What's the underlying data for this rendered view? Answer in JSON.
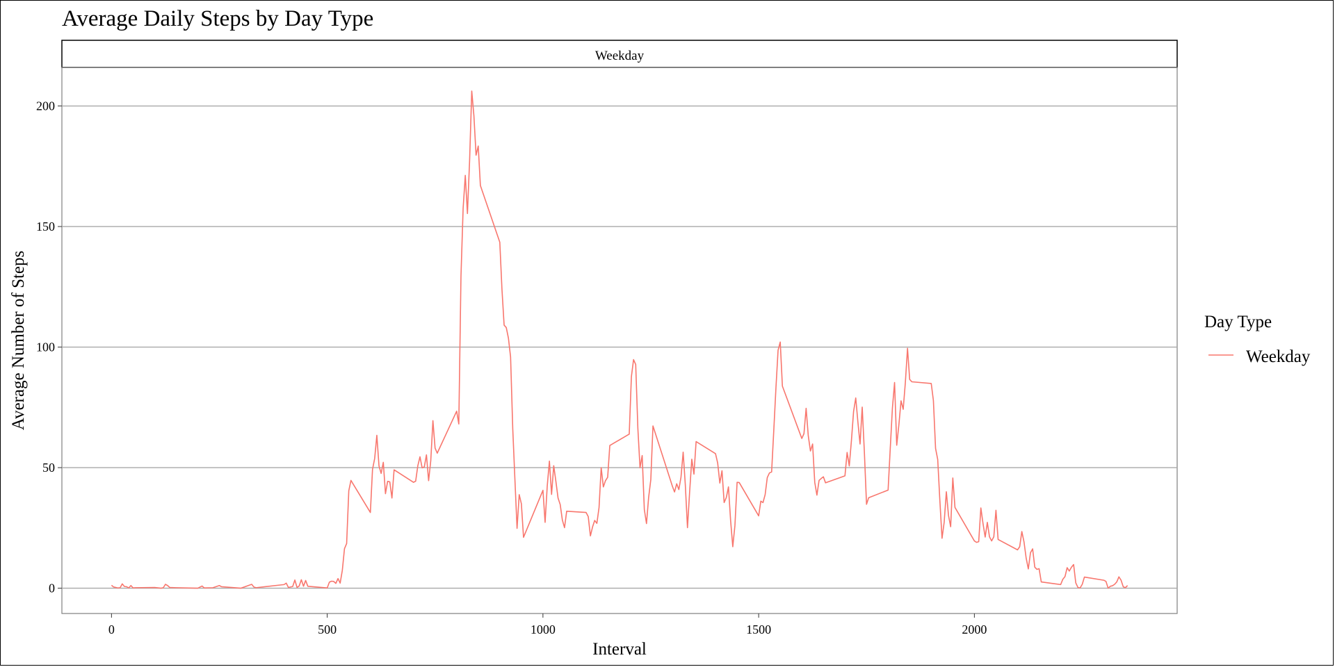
{
  "chart_data": {
    "type": "line",
    "title": "Average Daily Steps by Day Type",
    "facet_label": "Weekday",
    "xlabel": "Interval",
    "ylabel": "Average Number of Steps",
    "xlim": [
      -115,
      2470
    ],
    "ylim": [
      -10.5,
      216
    ],
    "x_ticks": [
      0,
      500,
      1000,
      1500,
      2000
    ],
    "y_ticks": [
      0,
      50,
      100,
      150,
      200
    ],
    "grid": "horizontal",
    "legend": {
      "title": "Day Type",
      "position": "right",
      "entries": [
        "Weekday"
      ]
    },
    "colors": {
      "series": "#F8766D",
      "grid": "#a8a8a8",
      "panel_border": "#7f7f7f"
    },
    "series": [
      {
        "name": "Weekday",
        "points": [
          [
            0,
            1.2
          ],
          [
            5,
            0.5
          ],
          [
            15,
            0.1
          ],
          [
            20,
            0.2
          ],
          [
            25,
            1.8
          ],
          [
            30,
            0.7
          ],
          [
            35,
            0.6
          ],
          [
            40,
            0.1
          ],
          [
            45,
            1.1
          ],
          [
            50,
            0.1
          ],
          [
            55,
            0.2
          ],
          [
            100,
            0.3
          ],
          [
            115,
            0.0
          ],
          [
            120,
            0.2
          ],
          [
            125,
            1.6
          ],
          [
            130,
            1.1
          ],
          [
            135,
            0.3
          ],
          [
            150,
            0.2
          ],
          [
            200,
            0.0
          ],
          [
            210,
            0.9
          ],
          [
            215,
            0.1
          ],
          [
            235,
            0.2
          ],
          [
            250,
            1.1
          ],
          [
            255,
            0.6
          ],
          [
            300,
            0.0
          ],
          [
            325,
            1.6
          ],
          [
            330,
            0.5
          ],
          [
            335,
            0.2
          ],
          [
            400,
            1.5
          ],
          [
            405,
            2.1
          ],
          [
            410,
            0.3
          ],
          [
            420,
            0.7
          ],
          [
            425,
            3.4
          ],
          [
            430,
            0.3
          ],
          [
            435,
            0.9
          ],
          [
            440,
            3.5
          ],
          [
            445,
            0.8
          ],
          [
            450,
            3.2
          ],
          [
            455,
            0.8
          ],
          [
            500,
            0.1
          ],
          [
            505,
            2.5
          ],
          [
            510,
            2.9
          ],
          [
            515,
            2.8
          ],
          [
            520,
            2.0
          ],
          [
            525,
            4.0
          ],
          [
            530,
            2.1
          ],
          [
            535,
            7.4
          ],
          [
            540,
            16.4
          ],
          [
            545,
            18.5
          ],
          [
            550,
            40.4
          ],
          [
            555,
            44.7
          ],
          [
            600,
            31.4
          ],
          [
            605,
            49.3
          ],
          [
            610,
            53.8
          ],
          [
            615,
            63.4
          ],
          [
            620,
            50.7
          ],
          [
            625,
            47.6
          ],
          [
            630,
            52.2
          ],
          [
            635,
            39.2
          ],
          [
            640,
            44.3
          ],
          [
            645,
            44.1
          ],
          [
            650,
            37.4
          ],
          [
            655,
            49.1
          ],
          [
            700,
            43.9
          ],
          [
            705,
            44.4
          ],
          [
            710,
            50.8
          ],
          [
            715,
            54.5
          ],
          [
            720,
            49.9
          ],
          [
            725,
            50.3
          ],
          [
            730,
            55.3
          ],
          [
            735,
            44.6
          ],
          [
            740,
            52.9
          ],
          [
            745,
            69.5
          ],
          [
            750,
            58.1
          ],
          [
            755,
            56.0
          ],
          [
            800,
            73.4
          ],
          [
            805,
            68.1
          ],
          [
            810,
            129.4
          ],
          [
            815,
            157.5
          ],
          [
            820,
            171.2
          ],
          [
            825,
            155.4
          ],
          [
            830,
            177.3
          ],
          [
            835,
            206.2
          ],
          [
            840,
            195.9
          ],
          [
            845,
            179.6
          ],
          [
            850,
            183.4
          ],
          [
            855,
            167.0
          ],
          [
            900,
            143.5
          ],
          [
            905,
            124.0
          ],
          [
            910,
            109.1
          ],
          [
            915,
            108.1
          ],
          [
            920,
            103.7
          ],
          [
            925,
            95.9
          ],
          [
            930,
            66.2
          ],
          [
            935,
            45.2
          ],
          [
            940,
            24.8
          ],
          [
            945,
            38.8
          ],
          [
            950,
            35.0
          ],
          [
            955,
            21.1
          ],
          [
            1000,
            40.6
          ],
          [
            1005,
            27.3
          ],
          [
            1010,
            42.5
          ],
          [
            1015,
            52.7
          ],
          [
            1020,
            38.9
          ],
          [
            1025,
            50.8
          ],
          [
            1030,
            44.3
          ],
          [
            1035,
            37.4
          ],
          [
            1040,
            34.7
          ],
          [
            1045,
            28.3
          ],
          [
            1050,
            25.1
          ],
          [
            1055,
            31.9
          ],
          [
            1100,
            31.4
          ],
          [
            1105,
            29.7
          ],
          [
            1110,
            21.7
          ],
          [
            1115,
            25.4
          ],
          [
            1120,
            28.1
          ],
          [
            1125,
            26.9
          ],
          [
            1130,
            33.4
          ],
          [
            1135,
            50.0
          ],
          [
            1140,
            42.0
          ],
          [
            1145,
            44.6
          ],
          [
            1150,
            46.0
          ],
          [
            1155,
            59.2
          ],
          [
            1200,
            63.9
          ],
          [
            1205,
            87.7
          ],
          [
            1210,
            94.8
          ],
          [
            1215,
            92.8
          ],
          [
            1220,
            66.3
          ],
          [
            1225,
            50.0
          ],
          [
            1230,
            55.0
          ],
          [
            1235,
            32.6
          ],
          [
            1240,
            26.8
          ],
          [
            1245,
            37.7
          ],
          [
            1250,
            45.0
          ],
          [
            1255,
            67.3
          ],
          [
            1300,
            42.3
          ],
          [
            1305,
            39.9
          ],
          [
            1310,
            43.3
          ],
          [
            1315,
            40.9
          ],
          [
            1320,
            46.1
          ],
          [
            1325,
            56.4
          ],
          [
            1330,
            42.8
          ],
          [
            1335,
            25.1
          ],
          [
            1340,
            39.9
          ],
          [
            1345,
            53.5
          ],
          [
            1350,
            47.3
          ],
          [
            1355,
            60.8
          ],
          [
            1400,
            55.8
          ],
          [
            1405,
            51.9
          ],
          [
            1410,
            43.6
          ],
          [
            1415,
            48.7
          ],
          [
            1420,
            35.5
          ],
          [
            1425,
            37.6
          ],
          [
            1430,
            42.0
          ],
          [
            1435,
            28.0
          ],
          [
            1440,
            17.2
          ],
          [
            1445,
            26.0
          ],
          [
            1450,
            43.9
          ],
          [
            1455,
            43.8
          ],
          [
            1500,
            30.0
          ],
          [
            1505,
            36.1
          ],
          [
            1510,
            35.5
          ],
          [
            1515,
            38.8
          ],
          [
            1520,
            45.9
          ],
          [
            1525,
            47.8
          ],
          [
            1530,
            48.2
          ],
          [
            1535,
            65.3
          ],
          [
            1540,
            82.9
          ],
          [
            1545,
            98.7
          ],
          [
            1550,
            102.1
          ],
          [
            1555,
            83.8
          ],
          [
            1600,
            62.1
          ],
          [
            1605,
            64.1
          ],
          [
            1610,
            74.6
          ],
          [
            1615,
            63.2
          ],
          [
            1620,
            56.9
          ],
          [
            1625,
            59.8
          ],
          [
            1630,
            43.9
          ],
          [
            1635,
            38.6
          ],
          [
            1640,
            44.7
          ],
          [
            1645,
            45.5
          ],
          [
            1650,
            46.2
          ],
          [
            1655,
            43.7
          ],
          [
            1700,
            46.6
          ],
          [
            1705,
            56.3
          ],
          [
            1710,
            50.7
          ],
          [
            1715,
            61.2
          ],
          [
            1720,
            73.3
          ],
          [
            1725,
            78.9
          ],
          [
            1730,
            68.9
          ],
          [
            1735,
            59.8
          ],
          [
            1740,
            75.1
          ],
          [
            1745,
            56.5
          ],
          [
            1750,
            34.8
          ],
          [
            1755,
            37.5
          ],
          [
            1800,
            40.7
          ],
          [
            1805,
            58.0
          ],
          [
            1810,
            74.7
          ],
          [
            1815,
            85.3
          ],
          [
            1820,
            59.3
          ],
          [
            1825,
            67.8
          ],
          [
            1830,
            77.7
          ],
          [
            1835,
            74.2
          ],
          [
            1840,
            85.3
          ],
          [
            1845,
            99.5
          ],
          [
            1850,
            86.6
          ],
          [
            1855,
            85.6
          ],
          [
            1900,
            84.9
          ],
          [
            1905,
            77.8
          ],
          [
            1910,
            58.0
          ],
          [
            1915,
            53.4
          ],
          [
            1920,
            36.3
          ],
          [
            1925,
            20.7
          ],
          [
            1930,
            27.4
          ],
          [
            1935,
            40.0
          ],
          [
            1940,
            30.2
          ],
          [
            1945,
            25.5
          ],
          [
            1950,
            45.7
          ],
          [
            1955,
            33.5
          ],
          [
            2000,
            19.6
          ],
          [
            2005,
            19.0
          ],
          [
            2010,
            19.3
          ],
          [
            2015,
            33.3
          ],
          [
            2020,
            26.8
          ],
          [
            2025,
            21.2
          ],
          [
            2030,
            27.3
          ],
          [
            2035,
            21.3
          ],
          [
            2040,
            19.6
          ],
          [
            2045,
            21.3
          ],
          [
            2050,
            32.3
          ],
          [
            2055,
            20.2
          ],
          [
            2100,
            15.9
          ],
          [
            2105,
            17.2
          ],
          [
            2110,
            23.5
          ],
          [
            2115,
            19.2
          ],
          [
            2120,
            12.5
          ],
          [
            2125,
            8.0
          ],
          [
            2130,
            14.7
          ],
          [
            2135,
            16.3
          ],
          [
            2140,
            8.7
          ],
          [
            2145,
            7.8
          ],
          [
            2150,
            8.1
          ],
          [
            2155,
            2.6
          ],
          [
            2200,
            1.5
          ],
          [
            2205,
            3.7
          ],
          [
            2210,
            4.8
          ],
          [
            2215,
            8.5
          ],
          [
            2220,
            7.1
          ],
          [
            2225,
            8.7
          ],
          [
            2230,
            9.8
          ],
          [
            2235,
            2.2
          ],
          [
            2240,
            0.3
          ],
          [
            2245,
            0.1
          ],
          [
            2250,
            1.6
          ],
          [
            2255,
            4.6
          ],
          [
            2300,
            3.3
          ],
          [
            2305,
            2.8
          ],
          [
            2310,
            0.0
          ],
          [
            2315,
            0.8
          ],
          [
            2320,
            1.0
          ],
          [
            2325,
            1.6
          ],
          [
            2330,
            2.6
          ],
          [
            2335,
            4.7
          ],
          [
            2340,
            3.3
          ],
          [
            2345,
            0.6
          ],
          [
            2350,
            0.2
          ],
          [
            2355,
            1.1
          ]
        ]
      }
    ]
  }
}
